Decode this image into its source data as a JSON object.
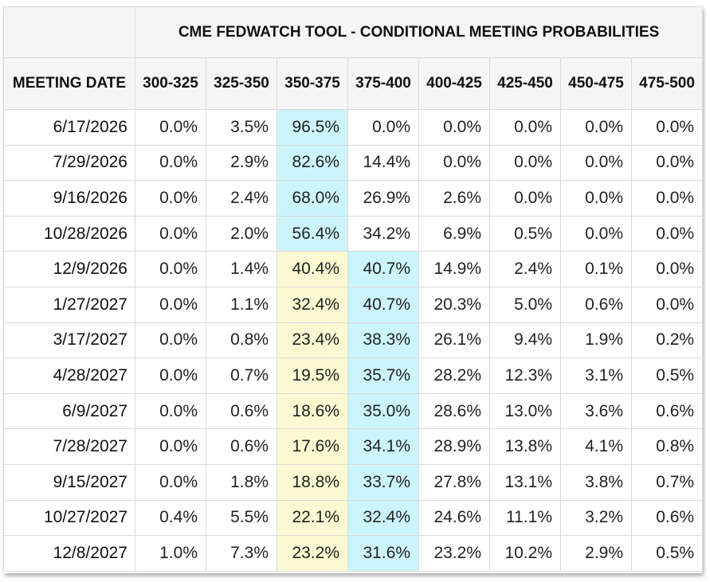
{
  "title": "CME FEDWATCH TOOL - CONDITIONAL MEETING PROBABILITIES",
  "header": {
    "date_label": "MEETING DATE",
    "ranges": [
      "300-325",
      "325-350",
      "350-375",
      "375-400",
      "400-425",
      "425-450",
      "450-475",
      "475-500"
    ]
  },
  "highlight_colors": {
    "current": "#ccf5fb",
    "previous": "#fafad2"
  },
  "rows": [
    {
      "date": "6/17/2026",
      "values": [
        "0.0%",
        "3.5%",
        "96.5%",
        "0.0%",
        "0.0%",
        "0.0%",
        "0.0%",
        "0.0%"
      ],
      "hl": [
        "",
        "",
        "cur",
        "",
        "",
        "",
        "",
        ""
      ]
    },
    {
      "date": "7/29/2026",
      "values": [
        "0.0%",
        "2.9%",
        "82.6%",
        "14.4%",
        "0.0%",
        "0.0%",
        "0.0%",
        "0.0%"
      ],
      "hl": [
        "",
        "",
        "cur",
        "",
        "",
        "",
        "",
        ""
      ]
    },
    {
      "date": "9/16/2026",
      "values": [
        "0.0%",
        "2.4%",
        "68.0%",
        "26.9%",
        "2.6%",
        "0.0%",
        "0.0%",
        "0.0%"
      ],
      "hl": [
        "",
        "",
        "cur",
        "",
        "",
        "",
        "",
        ""
      ]
    },
    {
      "date": "10/28/2026",
      "values": [
        "0.0%",
        "2.0%",
        "56.4%",
        "34.2%",
        "6.9%",
        "0.5%",
        "0.0%",
        "0.0%"
      ],
      "hl": [
        "",
        "",
        "cur",
        "",
        "",
        "",
        "",
        ""
      ]
    },
    {
      "date": "12/9/2026",
      "values": [
        "0.0%",
        "1.4%",
        "40.4%",
        "40.7%",
        "14.9%",
        "2.4%",
        "0.1%",
        "0.0%"
      ],
      "hl": [
        "",
        "",
        "prev",
        "cur",
        "",
        "",
        "",
        ""
      ]
    },
    {
      "date": "1/27/2027",
      "values": [
        "0.0%",
        "1.1%",
        "32.4%",
        "40.7%",
        "20.3%",
        "5.0%",
        "0.6%",
        "0.0%"
      ],
      "hl": [
        "",
        "",
        "prev",
        "cur",
        "",
        "",
        "",
        ""
      ]
    },
    {
      "date": "3/17/2027",
      "values": [
        "0.0%",
        "0.8%",
        "23.4%",
        "38.3%",
        "26.1%",
        "9.4%",
        "1.9%",
        "0.2%"
      ],
      "hl": [
        "",
        "",
        "prev",
        "cur",
        "",
        "",
        "",
        ""
      ]
    },
    {
      "date": "4/28/2027",
      "values": [
        "0.0%",
        "0.7%",
        "19.5%",
        "35.7%",
        "28.2%",
        "12.3%",
        "3.1%",
        "0.5%"
      ],
      "hl": [
        "",
        "",
        "prev",
        "cur",
        "",
        "",
        "",
        ""
      ]
    },
    {
      "date": "6/9/2027",
      "values": [
        "0.0%",
        "0.6%",
        "18.6%",
        "35.0%",
        "28.6%",
        "13.0%",
        "3.6%",
        "0.6%"
      ],
      "hl": [
        "",
        "",
        "prev",
        "cur",
        "",
        "",
        "",
        ""
      ]
    },
    {
      "date": "7/28/2027",
      "values": [
        "0.0%",
        "0.6%",
        "17.6%",
        "34.1%",
        "28.9%",
        "13.8%",
        "4.1%",
        "0.8%"
      ],
      "hl": [
        "",
        "",
        "prev",
        "cur",
        "",
        "",
        "",
        ""
      ]
    },
    {
      "date": "9/15/2027",
      "values": [
        "0.0%",
        "1.8%",
        "18.8%",
        "33.7%",
        "27.8%",
        "13.1%",
        "3.8%",
        "0.7%"
      ],
      "hl": [
        "",
        "",
        "prev",
        "cur",
        "",
        "",
        "",
        ""
      ]
    },
    {
      "date": "10/27/2027",
      "values": [
        "0.4%",
        "5.5%",
        "22.1%",
        "32.4%",
        "24.6%",
        "11.1%",
        "3.2%",
        "0.6%"
      ],
      "hl": [
        "",
        "",
        "prev",
        "cur",
        "",
        "",
        "",
        ""
      ]
    },
    {
      "date": "12/8/2027",
      "values": [
        "1.0%",
        "7.3%",
        "23.2%",
        "31.6%",
        "23.2%",
        "10.2%",
        "2.9%",
        "0.5%"
      ],
      "hl": [
        "",
        "",
        "prev",
        "cur",
        "",
        "",
        "",
        ""
      ]
    }
  ]
}
